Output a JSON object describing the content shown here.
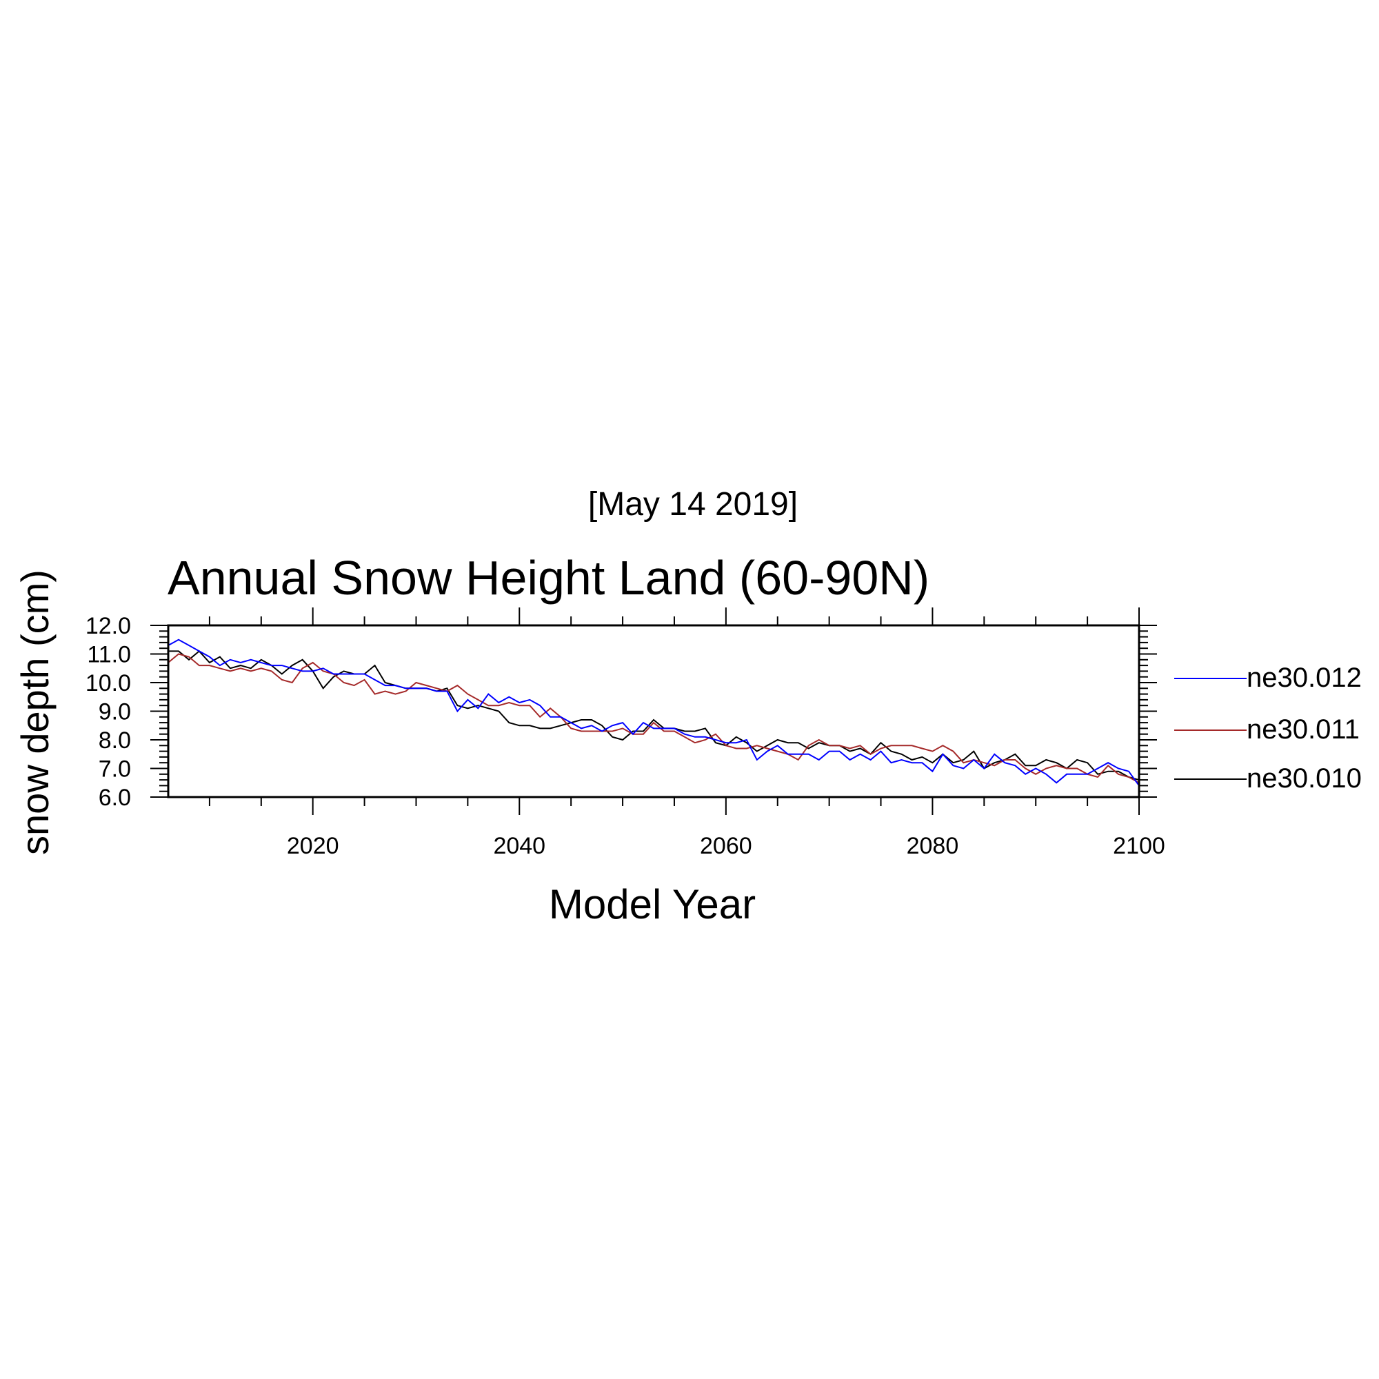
{
  "chart_data": {
    "type": "line",
    "date_label": "[May 14 2019]",
    "title": "Annual Snow Height Land (60-90N)",
    "xlabel": "Model Year",
    "ylabel": "snow depth (cm)",
    "xlim": [
      2006,
      2100
    ],
    "ylim": [
      6.0,
      12.0
    ],
    "x_ticks": [
      2020,
      2040,
      2060,
      2080,
      2100
    ],
    "x_tick_labels": [
      "2020",
      "2040",
      "2060",
      "2080",
      "2100"
    ],
    "y_ticks": [
      6.0,
      7.0,
      8.0,
      9.0,
      10.0,
      11.0,
      12.0
    ],
    "y_tick_labels": [
      "6.0",
      "7.0",
      "8.0",
      "9.0",
      "10.0",
      "11.0",
      "12.0"
    ],
    "grid": false,
    "legend_position": "right",
    "x": [
      2006,
      2007,
      2008,
      2009,
      2010,
      2011,
      2012,
      2013,
      2014,
      2015,
      2016,
      2017,
      2018,
      2019,
      2020,
      2021,
      2022,
      2023,
      2024,
      2025,
      2026,
      2027,
      2028,
      2029,
      2030,
      2031,
      2032,
      2033,
      2034,
      2035,
      2036,
      2037,
      2038,
      2039,
      2040,
      2041,
      2042,
      2043,
      2044,
      2045,
      2046,
      2047,
      2048,
      2049,
      2050,
      2051,
      2052,
      2053,
      2054,
      2055,
      2056,
      2057,
      2058,
      2059,
      2060,
      2061,
      2062,
      2063,
      2064,
      2065,
      2066,
      2067,
      2068,
      2069,
      2070,
      2071,
      2072,
      2073,
      2074,
      2075,
      2076,
      2077,
      2078,
      2079,
      2080,
      2081,
      2082,
      2083,
      2084,
      2085,
      2086,
      2087,
      2088,
      2089,
      2090,
      2091,
      2092,
      2093,
      2094,
      2095,
      2096,
      2097,
      2098,
      2099,
      2100
    ],
    "series": [
      {
        "name": "ne30.012",
        "color": "#0000ff",
        "values": [
          11.3,
          11.5,
          11.3,
          11.1,
          10.9,
          10.6,
          10.8,
          10.7,
          10.8,
          10.7,
          10.6,
          10.6,
          10.5,
          10.4,
          10.4,
          10.5,
          10.3,
          10.3,
          10.3,
          10.3,
          10.1,
          9.9,
          9.9,
          9.8,
          9.8,
          9.8,
          9.7,
          9.7,
          9.0,
          9.4,
          9.1,
          9.6,
          9.3,
          9.5,
          9.3,
          9.4,
          9.2,
          8.8,
          8.8,
          8.6,
          8.4,
          8.5,
          8.3,
          8.5,
          8.6,
          8.2,
          8.6,
          8.4,
          8.4,
          8.4,
          8.2,
          8.1,
          8.1,
          8.0,
          7.9,
          7.9,
          8.0,
          7.3,
          7.6,
          7.8,
          7.5,
          7.5,
          7.5,
          7.3,
          7.6,
          7.6,
          7.3,
          7.5,
          7.3,
          7.6,
          7.2,
          7.3,
          7.2,
          7.2,
          6.9,
          7.5,
          7.1,
          7.0,
          7.3,
          7.0,
          7.5,
          7.2,
          7.1,
          6.8,
          7.0,
          6.8,
          6.5,
          6.8,
          6.8,
          6.8,
          7.0,
          7.2,
          7.0,
          6.9,
          6.4
        ]
      },
      {
        "name": "ne30.011",
        "color": "#a52a2a",
        "values": [
          10.7,
          11.0,
          10.9,
          10.6,
          10.6,
          10.5,
          10.4,
          10.5,
          10.4,
          10.5,
          10.4,
          10.1,
          10.0,
          10.5,
          10.7,
          10.4,
          10.3,
          10.0,
          9.9,
          10.1,
          9.6,
          9.7,
          9.6,
          9.7,
          10.0,
          9.9,
          9.8,
          9.7,
          9.9,
          9.6,
          9.4,
          9.2,
          9.2,
          9.3,
          9.2,
          9.2,
          8.8,
          9.1,
          8.8,
          8.4,
          8.3,
          8.3,
          8.3,
          8.3,
          8.4,
          8.2,
          8.2,
          8.6,
          8.3,
          8.3,
          8.1,
          7.9,
          8.0,
          8.2,
          7.8,
          7.7,
          7.7,
          7.8,
          7.7,
          7.6,
          7.5,
          7.3,
          7.8,
          8.0,
          7.8,
          7.8,
          7.7,
          7.8,
          7.5,
          7.7,
          7.8,
          7.8,
          7.8,
          7.7,
          7.6,
          7.8,
          7.6,
          7.2,
          7.3,
          7.2,
          7.1,
          7.3,
          7.3,
          7.0,
          6.8,
          7.0,
          7.1,
          7.0,
          7.0,
          6.8,
          6.7,
          7.1,
          6.8,
          6.7,
          6.5
        ]
      },
      {
        "name": "ne30.010",
        "color": "#000000",
        "values": [
          11.1,
          11.1,
          10.8,
          11.1,
          10.7,
          10.9,
          10.5,
          10.6,
          10.5,
          10.8,
          10.6,
          10.3,
          10.6,
          10.8,
          10.4,
          9.8,
          10.2,
          10.4,
          10.3,
          10.3,
          10.6,
          10.0,
          9.9,
          9.8,
          9.8,
          9.8,
          9.7,
          9.8,
          9.2,
          9.1,
          9.2,
          9.1,
          9.0,
          8.6,
          8.5,
          8.5,
          8.4,
          8.4,
          8.5,
          8.6,
          8.7,
          8.7,
          8.5,
          8.1,
          8.0,
          8.3,
          8.3,
          8.7,
          8.4,
          8.4,
          8.3,
          8.3,
          8.4,
          7.9,
          7.8,
          8.1,
          7.9,
          7.6,
          7.8,
          8.0,
          7.9,
          7.9,
          7.7,
          7.9,
          7.8,
          7.8,
          7.6,
          7.7,
          7.5,
          7.9,
          7.6,
          7.5,
          7.3,
          7.4,
          7.2,
          7.5,
          7.2,
          7.3,
          7.6,
          7.0,
          7.2,
          7.3,
          7.5,
          7.1,
          7.1,
          7.3,
          7.2,
          7.0,
          7.3,
          7.2,
          6.8,
          6.9,
          6.9,
          6.7,
          6.6
        ]
      }
    ]
  }
}
